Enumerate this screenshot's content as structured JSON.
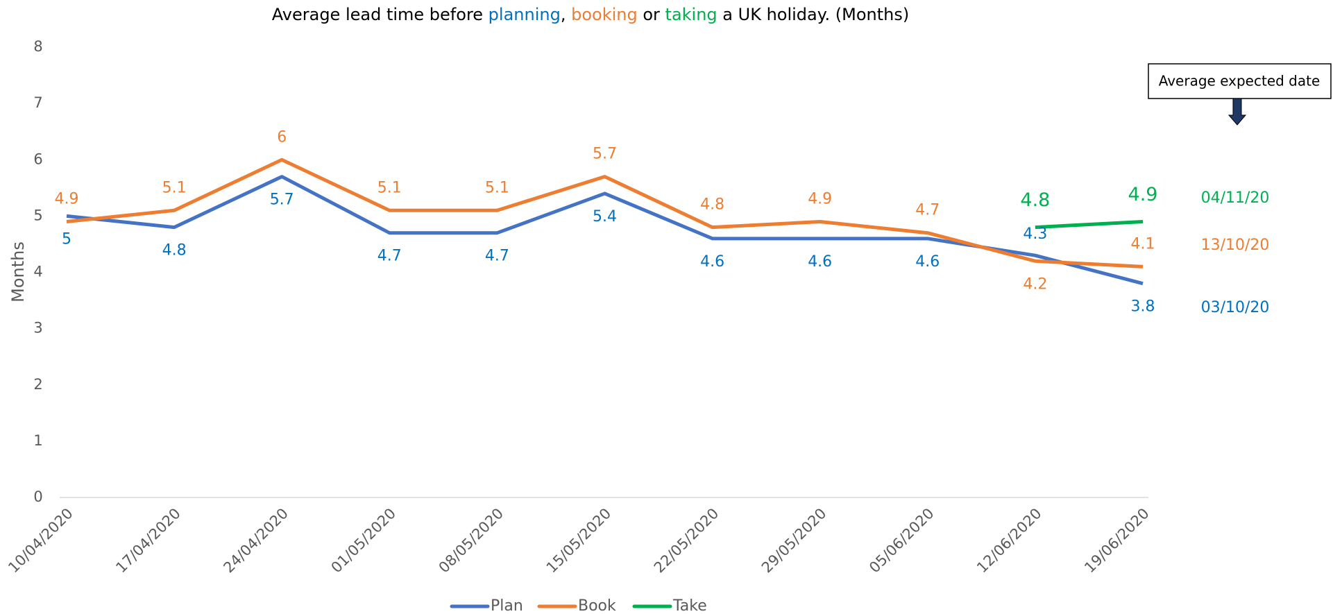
{
  "chart_data": {
    "type": "line",
    "title_parts": [
      {
        "text": "Average lead time before ",
        "color": "#000000"
      },
      {
        "text": "planning",
        "color": "#0070c0"
      },
      {
        "text": ", ",
        "color": "#000000"
      },
      {
        "text": "booking",
        "color": "#ed7d31"
      },
      {
        "text": " or ",
        "color": "#000000"
      },
      {
        "text": "taking",
        "color": "#00b050"
      },
      {
        "text": " a UK holiday. (Months)",
        "color": "#000000"
      }
    ],
    "y_label": "Months",
    "categories": [
      "10/04/2020",
      "17/04/2020",
      "24/04/2020",
      "01/05/2020",
      "08/05/2020",
      "15/05/2020",
      "22/05/2020",
      "29/05/2020",
      "05/06/2020",
      "12/06/2020",
      "19/06/2020"
    ],
    "series": [
      {
        "name": "Plan",
        "color": "#4472c4",
        "label_color": "#0070c0",
        "values": [
          5.0,
          4.8,
          5.7,
          4.7,
          4.7,
          5.4,
          4.6,
          4.6,
          4.6,
          4.3,
          3.8
        ]
      },
      {
        "name": "Book",
        "color": "#ed7d31",
        "label_color": "#ed7d31",
        "values": [
          4.9,
          5.1,
          6.0,
          5.1,
          5.1,
          5.7,
          4.8,
          4.9,
          4.7,
          4.2,
          4.1
        ]
      },
      {
        "name": "Take",
        "color": "#00b050",
        "label_color": "#00b050",
        "values": [
          null,
          null,
          null,
          null,
          null,
          null,
          null,
          null,
          null,
          4.8,
          4.9
        ]
      }
    ],
    "ylim": [
      0,
      8
    ],
    "yticks": [
      0,
      1,
      2,
      3,
      4,
      5,
      6,
      7,
      8
    ],
    "annotation_box": "Average expected date",
    "expected_dates": [
      {
        "text": "04/11/20",
        "color": "#00b050"
      },
      {
        "text": "13/10/20",
        "color": "#ed7d31"
      },
      {
        "text": "03/10/20",
        "color": "#0070c0"
      }
    ],
    "legend": "bottom"
  }
}
